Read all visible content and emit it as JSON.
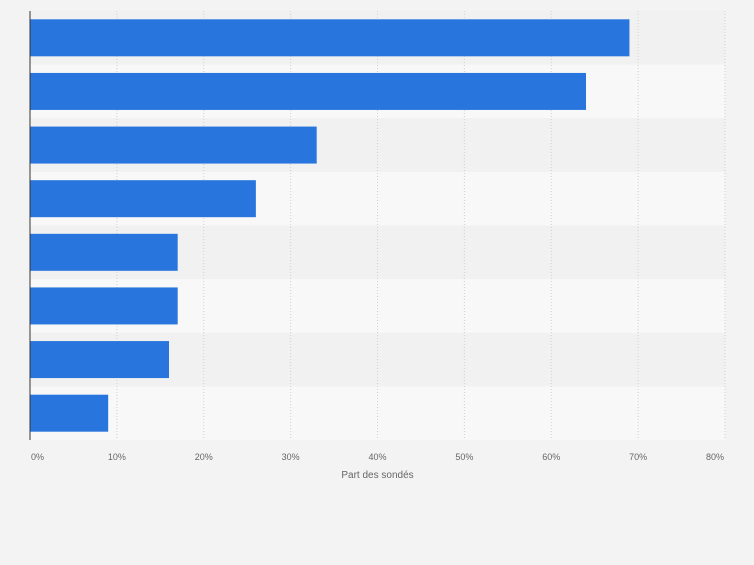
{
  "chart_data": {
    "type": "bar",
    "orientation": "horizontal",
    "categories": [
      "",
      "",
      "",
      "",
      "",
      "",
      "",
      ""
    ],
    "values": [
      69,
      64,
      33,
      26,
      17,
      17,
      16,
      9
    ],
    "xlabel": "Part des sondés",
    "ylabel": "",
    "xlim": [
      0,
      80
    ],
    "xticks": [
      "0%",
      "10%",
      "20%",
      "30%",
      "40%",
      "50%",
      "60%",
      "70%",
      "80%"
    ],
    "grid": true,
    "legend": "none",
    "colors": {
      "bar": "#2876dd",
      "band_a": "#f1f1f1",
      "band_b": "#f8f8f8",
      "grid": "#d0d0d0",
      "axis": "#333333",
      "tick_text": "#666666"
    }
  }
}
